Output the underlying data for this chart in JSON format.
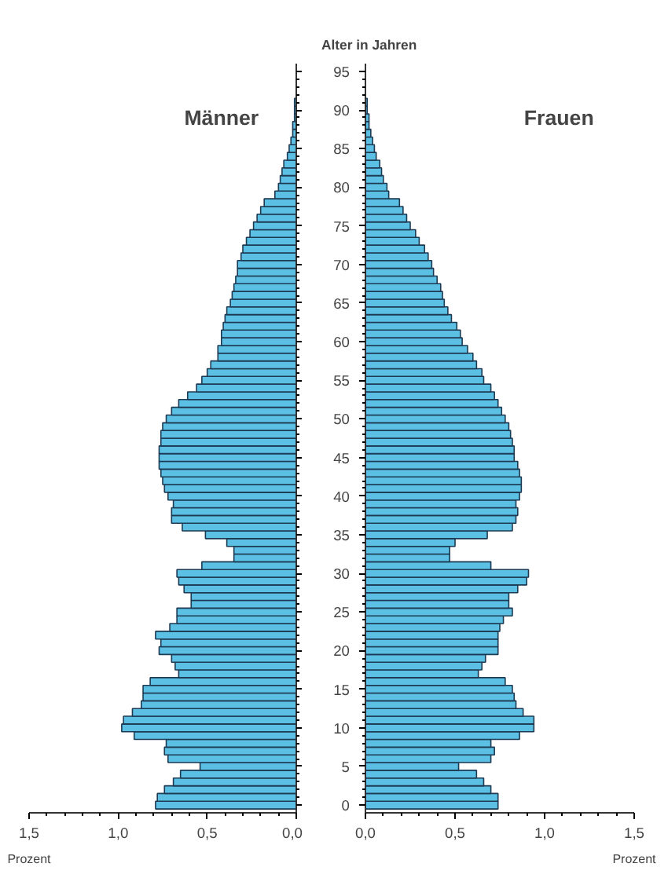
{
  "chart_data": [
    {
      "type": "bar",
      "orientation": "horizontal",
      "title": "Männer",
      "xlabel": "Prozent",
      "color": "#5bc0e4",
      "x": [
        0,
        1,
        2,
        3,
        4,
        5,
        6,
        7,
        8,
        9,
        10,
        11,
        12,
        13,
        14,
        15,
        16,
        17,
        18,
        19,
        20,
        21,
        22,
        23,
        24,
        25,
        26,
        27,
        28,
        29,
        30,
        31,
        32,
        33,
        34,
        35,
        36,
        37,
        38,
        39,
        40,
        41,
        42,
        43,
        44,
        45,
        46,
        47,
        48,
        49,
        50,
        51,
        52,
        53,
        54,
        55,
        56,
        57,
        58,
        59,
        60,
        61,
        62,
        63,
        64,
        65,
        66,
        67,
        68,
        69,
        70,
        71,
        72,
        73,
        74,
        75,
        76,
        77,
        78,
        79,
        80,
        81,
        82,
        83,
        84,
        85,
        86,
        87,
        88,
        89,
        90,
        91
      ],
      "values": [
        0.79,
        0.78,
        0.74,
        0.69,
        0.65,
        0.54,
        0.72,
        0.74,
        0.73,
        0.91,
        0.98,
        0.97,
        0.92,
        0.87,
        0.86,
        0.86,
        0.82,
        0.66,
        0.68,
        0.7,
        0.77,
        0.76,
        0.79,
        0.71,
        0.67,
        0.67,
        0.59,
        0.59,
        0.63,
        0.66,
        0.67,
        0.53,
        0.35,
        0.35,
        0.39,
        0.51,
        0.64,
        0.7,
        0.7,
        0.69,
        0.72,
        0.74,
        0.75,
        0.76,
        0.77,
        0.77,
        0.77,
        0.76,
        0.76,
        0.75,
        0.73,
        0.7,
        0.66,
        0.61,
        0.56,
        0.53,
        0.5,
        0.48,
        0.44,
        0.44,
        0.42,
        0.42,
        0.41,
        0.4,
        0.39,
        0.37,
        0.36,
        0.35,
        0.34,
        0.33,
        0.33,
        0.31,
        0.3,
        0.28,
        0.26,
        0.24,
        0.22,
        0.2,
        0.18,
        0.12,
        0.1,
        0.09,
        0.08,
        0.07,
        0.05,
        0.04,
        0.03,
        0.02,
        0.02,
        0.01,
        0.01,
        0.01
      ],
      "xlim": [
        1.5,
        0
      ],
      "xticks": [
        {
          "value": 1.5,
          "label": "1,5"
        },
        {
          "value": 1.0,
          "label": "1,0"
        },
        {
          "value": 0.5,
          "label": "0,5"
        },
        {
          "value": 0,
          "label": "0,0"
        }
      ],
      "ylim": [
        -1,
        96
      ],
      "yticks": [
        0,
        5,
        10,
        15,
        20,
        25,
        30,
        35,
        40,
        45,
        50,
        55,
        60,
        65,
        70,
        75,
        80,
        85,
        90,
        95
      ],
      "tick_labels": "x"
    },
    {
      "type": "bar",
      "orientation": "horizontal",
      "title": "Frauen",
      "xlabel": "Prozent",
      "ylabel": "Alter in Jahren",
      "color": "#5bc0e4",
      "x": [
        0,
        1,
        2,
        3,
        4,
        5,
        6,
        7,
        8,
        9,
        10,
        11,
        12,
        13,
        14,
        15,
        16,
        17,
        18,
        19,
        20,
        21,
        22,
        23,
        24,
        25,
        26,
        27,
        28,
        29,
        30,
        31,
        32,
        33,
        34,
        35,
        36,
        37,
        38,
        39,
        40,
        41,
        42,
        43,
        44,
        45,
        46,
        47,
        48,
        49,
        50,
        51,
        52,
        53,
        54,
        55,
        56,
        57,
        58,
        59,
        60,
        61,
        62,
        63,
        64,
        65,
        66,
        67,
        68,
        69,
        70,
        71,
        72,
        73,
        74,
        75,
        76,
        77,
        78,
        79,
        80,
        81,
        82,
        83,
        84,
        85,
        86,
        87,
        88,
        89,
        90,
        91
      ],
      "values": [
        0.74,
        0.74,
        0.7,
        0.66,
        0.62,
        0.52,
        0.7,
        0.72,
        0.7,
        0.86,
        0.94,
        0.94,
        0.88,
        0.84,
        0.83,
        0.82,
        0.78,
        0.63,
        0.65,
        0.67,
        0.74,
        0.74,
        0.74,
        0.75,
        0.77,
        0.82,
        0.8,
        0.8,
        0.85,
        0.9,
        0.91,
        0.7,
        0.47,
        0.47,
        0.5,
        0.68,
        0.82,
        0.84,
        0.85,
        0.84,
        0.86,
        0.87,
        0.87,
        0.86,
        0.85,
        0.83,
        0.83,
        0.82,
        0.81,
        0.8,
        0.78,
        0.76,
        0.74,
        0.72,
        0.7,
        0.66,
        0.65,
        0.62,
        0.6,
        0.57,
        0.54,
        0.53,
        0.51,
        0.48,
        0.46,
        0.44,
        0.43,
        0.42,
        0.4,
        0.38,
        0.37,
        0.35,
        0.33,
        0.3,
        0.28,
        0.25,
        0.23,
        0.21,
        0.19,
        0.13,
        0.12,
        0.1,
        0.09,
        0.08,
        0.06,
        0.05,
        0.04,
        0.03,
        0.02,
        0.02,
        0.01,
        0.01
      ],
      "xlim": [
        0,
        1.5
      ],
      "xticks": [
        {
          "value": 0,
          "label": "0,0"
        },
        {
          "value": 0.5,
          "label": "0,5"
        },
        {
          "value": 1.0,
          "label": "1,0"
        },
        {
          "value": 1.5,
          "label": "1,5"
        }
      ],
      "ylim": [
        -1,
        96
      ],
      "yticks": [
        0,
        5,
        10,
        15,
        20,
        25,
        30,
        35,
        40,
        45,
        50,
        55,
        60,
        65,
        70,
        75,
        80,
        85,
        90,
        95
      ]
    }
  ]
}
